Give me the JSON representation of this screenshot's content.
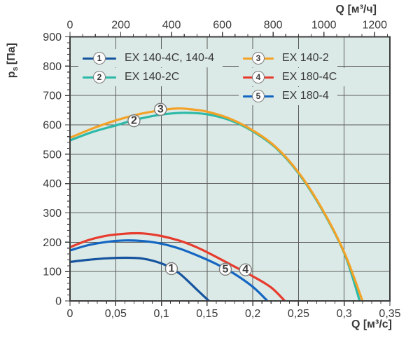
{
  "chart_data": {
    "type": "line",
    "plot_bg": "#dbeae6",
    "grid": true,
    "grid_color": "#5c5c5c",
    "axis_color": "#3c3c3c",
    "text_color": "#3a3a3a",
    "axes": {
      "left": {
        "title_base": "p",
        "title_sub": "s",
        "title_unit": "[Па]",
        "min": 0,
        "max": 900,
        "major_step": 100,
        "minor_step": 20
      },
      "bottom": {
        "title": "Q [м³/с]",
        "min": 0,
        "max": 0.35,
        "majors": [
          0,
          0.05,
          0.1,
          0.15,
          0.2,
          0.25,
          0.3,
          0.35
        ],
        "tick_labels": [
          "0",
          "0,05",
          "0,1",
          "0,15",
          "0,2",
          "0,25",
          "0,3",
          "0,35"
        ],
        "minor_step": 0.01
      },
      "top": {
        "title": "Q [м³/ч]",
        "min": 0,
        "max": 1260,
        "majors": [
          0,
          200,
          400,
          600,
          800,
          1000,
          1200
        ],
        "tick_labels": [
          "0",
          "200",
          "400",
          "600",
          "800",
          "1000",
          "1200"
        ],
        "minor_step": 50
      }
    },
    "series": [
      {
        "num": "1",
        "label": "EX 140-4C, 140-4",
        "color": "#17549f",
        "marker": {
          "x": 0.111,
          "y": 110
        },
        "points": [
          [
            0,
            133
          ],
          [
            0.02,
            140
          ],
          [
            0.04,
            145
          ],
          [
            0.06,
            147
          ],
          [
            0.08,
            144
          ],
          [
            0.1,
            128
          ],
          [
            0.11,
            112
          ],
          [
            0.12,
            93
          ],
          [
            0.13,
            65
          ],
          [
            0.14,
            35
          ],
          [
            0.152,
            0
          ]
        ]
      },
      {
        "num": "2",
        "label": "EX 140-2C",
        "color": "#2db9a7",
        "marker": {
          "x": 0.07,
          "y": 614
        },
        "points": [
          [
            0,
            547
          ],
          [
            0.025,
            576
          ],
          [
            0.05,
            598
          ],
          [
            0.075,
            620
          ],
          [
            0.1,
            635
          ],
          [
            0.125,
            641
          ],
          [
            0.15,
            636
          ],
          [
            0.175,
            616
          ],
          [
            0.2,
            578
          ],
          [
            0.225,
            522
          ],
          [
            0.25,
            435
          ],
          [
            0.275,
            315
          ],
          [
            0.3,
            163
          ],
          [
            0.317,
            0
          ]
        ]
      },
      {
        "num": "3",
        "label": "EX 140-2",
        "color": "#f3a227",
        "marker": {
          "x": 0.099,
          "y": 653
        },
        "points": [
          [
            0,
            556
          ],
          [
            0.025,
            588
          ],
          [
            0.05,
            615
          ],
          [
            0.075,
            636
          ],
          [
            0.1,
            650
          ],
          [
            0.118,
            656
          ],
          [
            0.135,
            652
          ],
          [
            0.15,
            645
          ],
          [
            0.175,
            621
          ],
          [
            0.2,
            581
          ],
          [
            0.225,
            525
          ],
          [
            0.25,
            438
          ],
          [
            0.275,
            318
          ],
          [
            0.3,
            166
          ],
          [
            0.32,
            0
          ]
        ]
      },
      {
        "num": "4",
        "label": "EX 180-4C",
        "color": "#e73b2e",
        "marker": {
          "x": 0.192,
          "y": 106
        },
        "points": [
          [
            0,
            183
          ],
          [
            0.02,
            207
          ],
          [
            0.04,
            222
          ],
          [
            0.06,
            229
          ],
          [
            0.08,
            230
          ],
          [
            0.1,
            221
          ],
          [
            0.12,
            205
          ],
          [
            0.14,
            181
          ],
          [
            0.16,
            150
          ],
          [
            0.18,
            117
          ],
          [
            0.2,
            84
          ],
          [
            0.22,
            46
          ],
          [
            0.235,
            0
          ]
        ]
      },
      {
        "num": "5",
        "label": "EX 180-4",
        "color": "#1566c2",
        "marker": {
          "x": 0.17,
          "y": 108
        },
        "points": [
          [
            0,
            172
          ],
          [
            0.02,
            190
          ],
          [
            0.04,
            201
          ],
          [
            0.06,
            206
          ],
          [
            0.08,
            204
          ],
          [
            0.1,
            195
          ],
          [
            0.12,
            178
          ],
          [
            0.14,
            154
          ],
          [
            0.16,
            126
          ],
          [
            0.18,
            92
          ],
          [
            0.2,
            48
          ],
          [
            0.216,
            0
          ]
        ]
      }
    ]
  }
}
